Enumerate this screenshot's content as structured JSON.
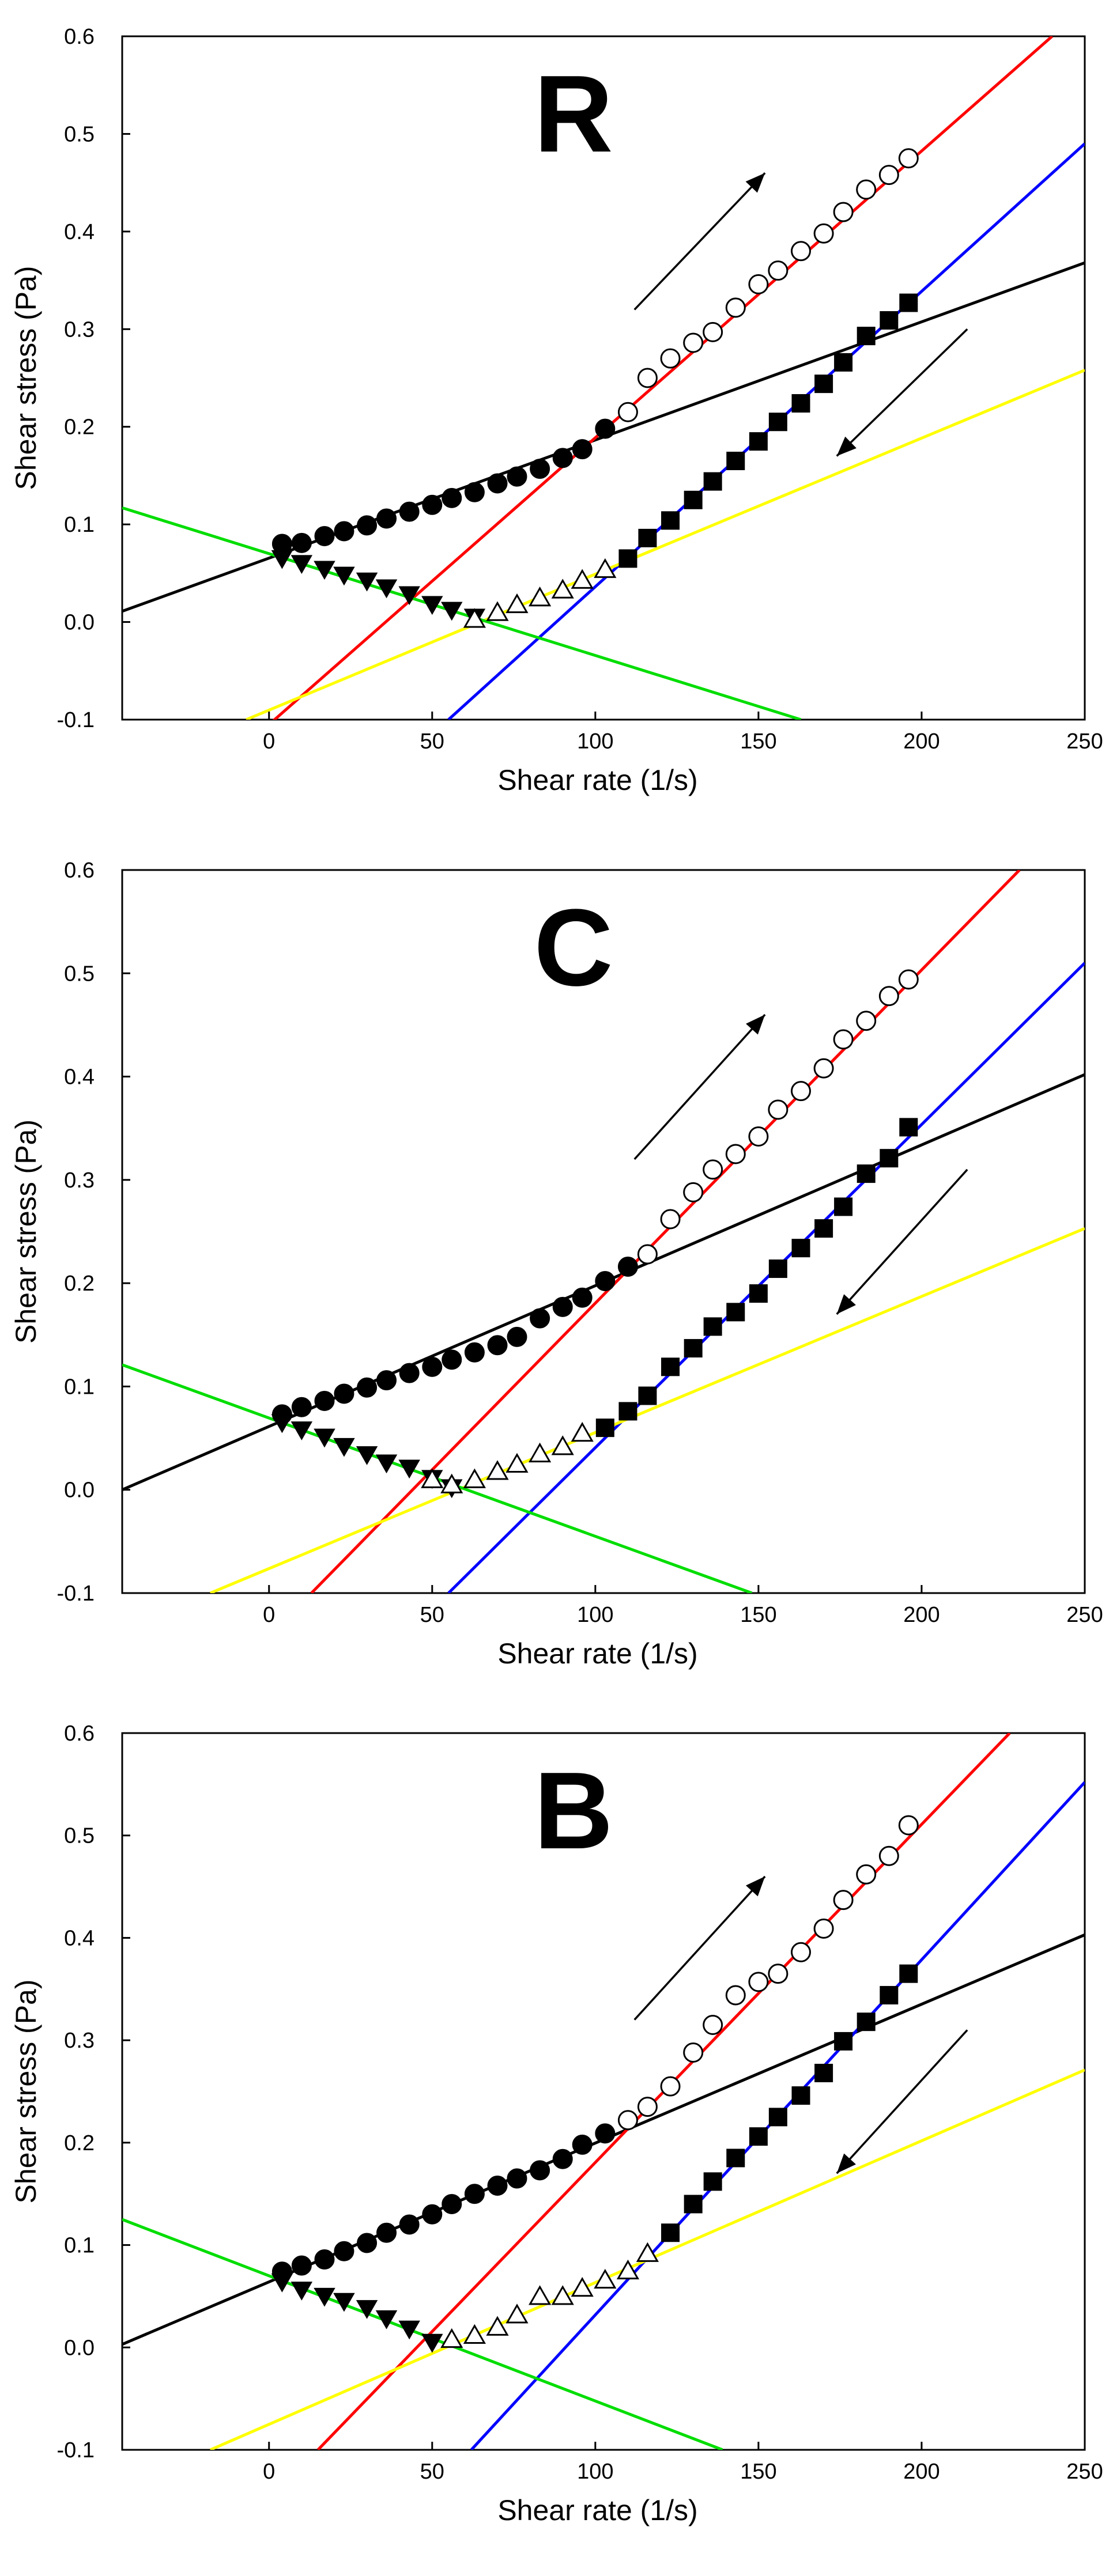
{
  "chart_data": [
    {
      "type": "scatter",
      "panel_label": "R",
      "xlabel": "Shear rate (1/s)",
      "ylabel": "Shear stress (Pa)",
      "xlim": [
        -45,
        250
      ],
      "ylim": [
        -0.1,
        0.6
      ],
      "xticks": [
        "0",
        "50",
        "100",
        "150",
        "200",
        "250"
      ],
      "yticks": [
        "-0.1",
        "0.0",
        "0.1",
        "0.2",
        "0.3",
        "0.4",
        "0.5",
        "0.6"
      ],
      "grid": false,
      "arrows": [
        {
          "from": [
            112,
            0.32
          ],
          "to": [
            152,
            0.46
          ],
          "direction": "up"
        },
        {
          "from": [
            214,
            0.3
          ],
          "to": [
            174,
            0.17
          ],
          "direction": "down"
        }
      ],
      "fit_lines": [
        {
          "color": "#000000",
          "x": [
            -45,
            250
          ],
          "y": [
            0.011,
            0.368
          ]
        },
        {
          "color": "#ff0000",
          "x": [
            0,
            240
          ],
          "y": [
            -0.105,
            0.6
          ]
        },
        {
          "color": "#0000ff",
          "x": [
            55,
            250
          ],
          "y": [
            -0.1,
            0.49
          ]
        },
        {
          "color": "#ffff00",
          "x": [
            -7,
            250
          ],
          "y": [
            -0.1,
            0.258
          ]
        },
        {
          "color": "#00dd00",
          "x": [
            -45,
            163
          ],
          "y": [
            0.117,
            -0.1
          ]
        }
      ],
      "series": [
        {
          "marker": "filled-circle",
          "x": [
            4,
            10,
            17,
            23,
            30,
            36,
            43,
            50,
            56,
            63,
            70,
            76,
            83,
            90,
            96,
            103
          ],
          "y": [
            0.08,
            0.081,
            0.088,
            0.093,
            0.099,
            0.106,
            0.113,
            0.12,
            0.127,
            0.133,
            0.142,
            0.149,
            0.157,
            0.168,
            0.177,
            0.198
          ]
        },
        {
          "marker": "filled-triangle-down",
          "x": [
            4,
            10,
            17,
            23,
            30,
            36,
            43,
            50,
            56,
            63
          ],
          "y": [
            0.065,
            0.06,
            0.054,
            0.048,
            0.042,
            0.035,
            0.028,
            0.018,
            0.012,
            0.005
          ]
        },
        {
          "marker": "open-triangle-up",
          "x": [
            63,
            70,
            76,
            83,
            90,
            96,
            103
          ],
          "y": [
            0.003,
            0.01,
            0.018,
            0.025,
            0.033,
            0.043,
            0.054
          ]
        },
        {
          "marker": "filled-square",
          "x": [
            110,
            116,
            123,
            130,
            136,
            143,
            150,
            156,
            163,
            170,
            176,
            183,
            190,
            196
          ],
          "y": [
            0.065,
            0.086,
            0.104,
            0.125,
            0.144,
            0.165,
            0.185,
            0.205,
            0.224,
            0.244,
            0.266,
            0.293,
            0.309,
            0.327
          ]
        },
        {
          "marker": "open-circle",
          "x": [
            110,
            116,
            123,
            130,
            136,
            143,
            150,
            156,
            163,
            170,
            176,
            183,
            190,
            196
          ],
          "y": [
            0.215,
            0.25,
            0.27,
            0.286,
            0.297,
            0.322,
            0.346,
            0.36,
            0.38,
            0.398,
            0.42,
            0.443,
            0.458,
            0.475
          ]
        }
      ]
    },
    {
      "type": "scatter",
      "panel_label": "C",
      "xlabel": "Shear rate (1/s)",
      "ylabel": "Shear stress (Pa)",
      "xlim": [
        -45,
        250
      ],
      "ylim": [
        -0.1,
        0.6
      ],
      "xticks": [
        "0",
        "50",
        "100",
        "150",
        "200",
        "250"
      ],
      "yticks": [
        "-0.1",
        "0.0",
        "0.1",
        "0.2",
        "0.3",
        "0.4",
        "0.5",
        "0.6"
      ],
      "grid": false,
      "arrows": [
        {
          "from": [
            112,
            0.32
          ],
          "to": [
            152,
            0.46
          ],
          "direction": "up"
        },
        {
          "from": [
            214,
            0.31
          ],
          "to": [
            174,
            0.17
          ],
          "direction": "down"
        }
      ],
      "fit_lines": [
        {
          "color": "#000000",
          "x": [
            -45,
            250
          ],
          "y": [
            0.0,
            0.402
          ]
        },
        {
          "color": "#ff0000",
          "x": [
            13,
            230
          ],
          "y": [
            -0.1,
            0.6
          ]
        },
        {
          "color": "#0000ff",
          "x": [
            55,
            250
          ],
          "y": [
            -0.1,
            0.51
          ]
        },
        {
          "color": "#ffff00",
          "x": [
            -18,
            250
          ],
          "y": [
            -0.1,
            0.253
          ]
        },
        {
          "color": "#00dd00",
          "x": [
            -45,
            148
          ],
          "y": [
            0.121,
            -0.1
          ]
        }
      ],
      "series": [
        {
          "marker": "filled-circle",
          "x": [
            4,
            10,
            17,
            23,
            30,
            36,
            43,
            50,
            56,
            63,
            70,
            76,
            83,
            90,
            96,
            103,
            110
          ],
          "y": [
            0.073,
            0.08,
            0.086,
            0.093,
            0.099,
            0.106,
            0.113,
            0.119,
            0.126,
            0.133,
            0.14,
            0.148,
            0.166,
            0.177,
            0.186,
            0.202,
            0.216
          ]
        },
        {
          "marker": "filled-triangle-down",
          "x": [
            4,
            10,
            17,
            23,
            30,
            36,
            43,
            50,
            56
          ],
          "y": [
            0.065,
            0.058,
            0.051,
            0.042,
            0.034,
            0.026,
            0.021,
            0.011,
            0.002
          ]
        },
        {
          "marker": "open-triangle-up",
          "x": [
            50,
            56,
            63,
            70,
            76,
            83,
            90,
            96
          ],
          "y": [
            0.01,
            0.005,
            0.01,
            0.018,
            0.025,
            0.035,
            0.042,
            0.055
          ]
        },
        {
          "marker": "filled-square",
          "x": [
            103,
            110,
            116,
            123,
            130,
            136,
            143,
            150,
            156,
            163,
            170,
            176,
            183,
            190,
            196
          ],
          "y": [
            0.06,
            0.076,
            0.091,
            0.119,
            0.137,
            0.158,
            0.172,
            0.19,
            0.214,
            0.234,
            0.253,
            0.274,
            0.306,
            0.321,
            0.351
          ]
        },
        {
          "marker": "open-circle",
          "x": [
            116,
            123,
            130,
            136,
            143,
            150,
            156,
            163,
            170,
            176,
            183,
            190,
            196
          ],
          "y": [
            0.228,
            0.262,
            0.288,
            0.31,
            0.325,
            0.342,
            0.368,
            0.386,
            0.408,
            0.436,
            0.454,
            0.478,
            0.494
          ]
        }
      ]
    },
    {
      "type": "scatter",
      "panel_label": "B",
      "xlabel": "Shear rate (1/s)",
      "ylabel": "Shear stress (Pa)",
      "xlim": [
        -45,
        250
      ],
      "ylim": [
        -0.1,
        0.6
      ],
      "xticks": [
        "0",
        "50",
        "100",
        "150",
        "200",
        "250"
      ],
      "yticks": [
        "-0.1",
        "0.0",
        "0.1",
        "0.2",
        "0.3",
        "0.4",
        "0.5",
        "0.6"
      ],
      "grid": false,
      "arrows": [
        {
          "from": [
            112,
            0.32
          ],
          "to": [
            152,
            0.46
          ],
          "direction": "up"
        },
        {
          "from": [
            214,
            0.31
          ],
          "to": [
            174,
            0.17
          ],
          "direction": "down"
        }
      ],
      "fit_lines": [
        {
          "color": "#000000",
          "x": [
            -45,
            250
          ],
          "y": [
            0.003,
            0.403
          ]
        },
        {
          "color": "#ff0000",
          "x": [
            15,
            227
          ],
          "y": [
            -0.1,
            0.6
          ]
        },
        {
          "color": "#0000ff",
          "x": [
            62,
            250
          ],
          "y": [
            -0.1,
            0.552
          ]
        },
        {
          "color": "#ffff00",
          "x": [
            -18,
            250
          ],
          "y": [
            -0.1,
            0.271
          ]
        },
        {
          "color": "#00dd00",
          "x": [
            -45,
            139
          ],
          "y": [
            0.125,
            -0.1
          ]
        }
      ],
      "series": [
        {
          "marker": "filled-circle",
          "x": [
            4,
            10,
            17,
            23,
            30,
            36,
            43,
            50,
            56,
            63,
            70,
            76,
            83,
            90,
            96,
            103
          ],
          "y": [
            0.074,
            0.08,
            0.086,
            0.094,
            0.102,
            0.112,
            0.12,
            0.13,
            0.14,
            0.15,
            0.158,
            0.165,
            0.173,
            0.184,
            0.198,
            0.209
          ]
        },
        {
          "marker": "filled-triangle-down",
          "x": [
            4,
            10,
            17,
            23,
            30,
            36,
            43,
            50
          ],
          "y": [
            0.064,
            0.056,
            0.05,
            0.045,
            0.038,
            0.028,
            0.018,
            0.005
          ]
        },
        {
          "marker": "open-triangle-up",
          "x": [
            56,
            63,
            70,
            76,
            83,
            90,
            96,
            103,
            110,
            116
          ],
          "y": [
            0.008,
            0.012,
            0.02,
            0.032,
            0.05,
            0.05,
            0.058,
            0.066,
            0.075,
            0.092
          ]
        },
        {
          "marker": "filled-square",
          "x": [
            123,
            130,
            136,
            143,
            150,
            156,
            163,
            170,
            176,
            183,
            190,
            196
          ],
          "y": [
            0.112,
            0.14,
            0.162,
            0.185,
            0.206,
            0.225,
            0.246,
            0.268,
            0.299,
            0.318,
            0.344,
            0.365
          ]
        },
        {
          "marker": "open-circle",
          "x": [
            110,
            116,
            123,
            130,
            136,
            143,
            150,
            156,
            163,
            170,
            176,
            183,
            190,
            196
          ],
          "y": [
            0.222,
            0.235,
            0.255,
            0.288,
            0.315,
            0.344,
            0.357,
            0.365,
            0.386,
            0.409,
            0.437,
            0.462,
            0.48,
            0.51
          ]
        }
      ]
    }
  ]
}
